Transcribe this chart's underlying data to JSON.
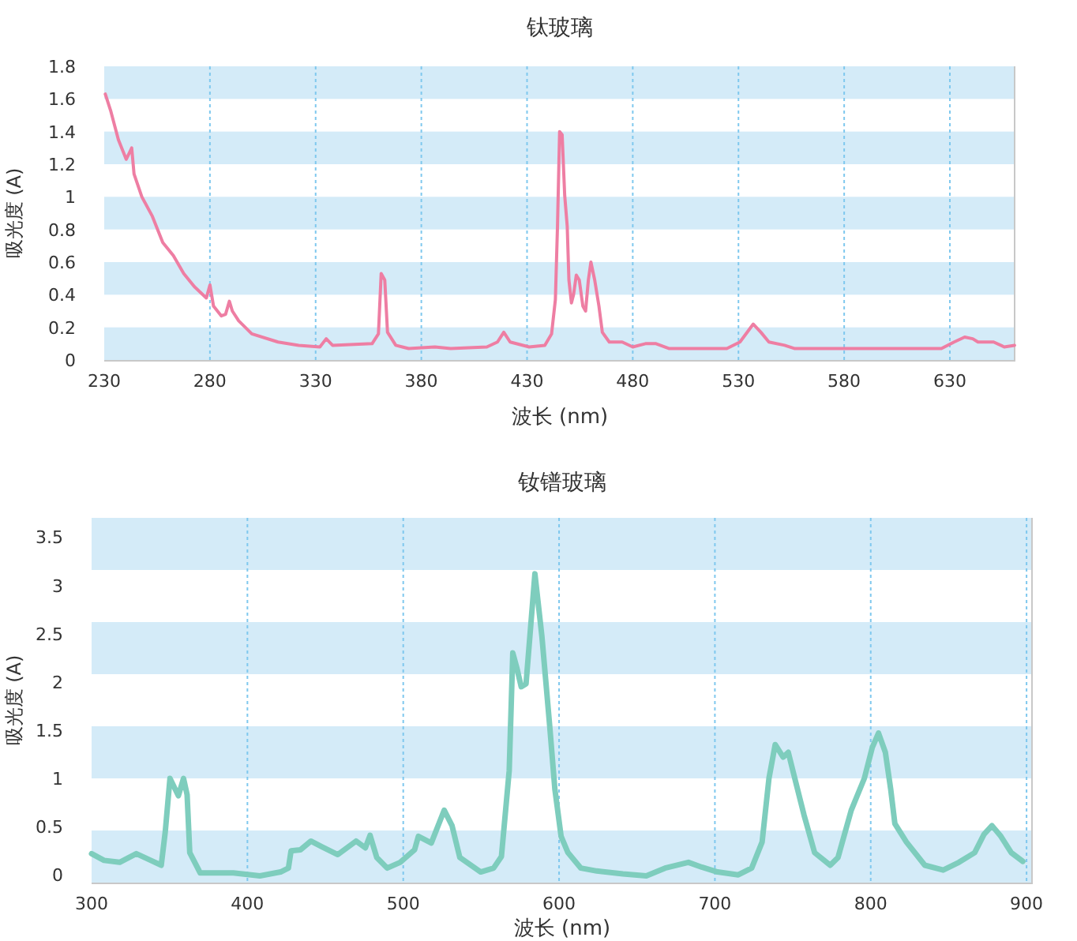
{
  "chart_data": [
    {
      "type": "line",
      "title": "钛玻璃",
      "xlabel": "波长 (nm)",
      "ylabel": "吸光度 (A)",
      "xlim": [
        230,
        661
      ],
      "ylim": [
        0,
        1.8
      ],
      "xticks": [
        230,
        280,
        330,
        380,
        430,
        480,
        530,
        580,
        630
      ],
      "yticks": [
        0,
        0.2,
        0.4,
        0.6,
        0.8,
        1,
        1.2,
        1.4,
        1.6,
        1.8
      ],
      "grid": "x",
      "bands": [
        {
          "axis": "y",
          "from": 0,
          "to": 0.2,
          "color": "#d4ebf8"
        },
        {
          "axis": "y",
          "from": 0.4,
          "to": 0.6,
          "color": "#d4ebf8"
        },
        {
          "axis": "y",
          "from": 0.8,
          "to": 1,
          "color": "#d4ebf8"
        },
        {
          "axis": "y",
          "from": 1.2,
          "to": 1.4,
          "color": "#d4ebf8"
        },
        {
          "axis": "y",
          "from": 1.6,
          "to": 1.8,
          "color": "#d4ebf8"
        }
      ],
      "series": [
        {
          "color": "#ee7ea3",
          "x": [
            230.5,
            233,
            236.7,
            240.4,
            241.9,
            243,
            244.1,
            247.8,
            252.8,
            257.7,
            262.7,
            267.6,
            272.6,
            278.3,
            280,
            281.7,
            285.4,
            287.4,
            289.2,
            290.6,
            293.6,
            299.8,
            312.2,
            322,
            332,
            335,
            338,
            356.7,
            359.7,
            361,
            362.7,
            364,
            367.9,
            374,
            386.4,
            393.9,
            411,
            416,
            419,
            422,
            431,
            438.4,
            441.6,
            443.4,
            444.4,
            445.4,
            446.6,
            447.8,
            449,
            449.8,
            451,
            452,
            453.3,
            454.7,
            456.4,
            457.7,
            459,
            460.2,
            462,
            464,
            465.6,
            468.9,
            475,
            480,
            486,
            491,
            497.3,
            524.5,
            530.7,
            537,
            540.6,
            544.4,
            551.8,
            556.7,
            626,
            632,
            637,
            640.8,
            643.3,
            650.7,
            655.7,
            660.6
          ],
          "values": [
            1.63,
            1.53,
            1.35,
            1.23,
            1.27,
            1.3,
            1.14,
            1,
            0.88,
            0.72,
            0.64,
            0.53,
            0.45,
            0.38,
            0.46,
            0.33,
            0.27,
            0.28,
            0.36,
            0.3,
            0.24,
            0.16,
            0.11,
            0.09,
            0.08,
            0.13,
            0.09,
            0.1,
            0.16,
            0.53,
            0.49,
            0.17,
            0.09,
            0.07,
            0.08,
            0.07,
            0.08,
            0.11,
            0.17,
            0.11,
            0.08,
            0.09,
            0.16,
            0.37,
            0.82,
            1.4,
            1.38,
            1.01,
            0.82,
            0.49,
            0.35,
            0.4,
            0.52,
            0.49,
            0.33,
            0.3,
            0.49,
            0.6,
            0.49,
            0.33,
            0.17,
            0.11,
            0.11,
            0.08,
            0.1,
            0.1,
            0.07,
            0.07,
            0.11,
            0.22,
            0.17,
            0.11,
            0.09,
            0.07,
            0.07,
            0.11,
            0.14,
            0.13,
            0.11,
            0.11,
            0.08,
            0.09
          ]
        }
      ]
    },
    {
      "type": "line",
      "title": "钕镨玻璃",
      "xlabel": "波长 (nm)",
      "ylabel": "吸光度 (A)",
      "xlim": [
        300,
        904
      ],
      "ylim": [
        -0.08,
        3.7
      ],
      "xticks": [
        300,
        400,
        500,
        600,
        700,
        800,
        900
      ],
      "yticks": [
        0,
        0.5,
        1,
        1.5,
        2,
        2.5,
        3,
        3.5
      ],
      "grid": "x",
      "bands": [
        {
          "axis": "y",
          "from": -0.08,
          "to": 0.46,
          "color": "#d4ebf8"
        },
        {
          "axis": "y",
          "from": 1,
          "to": 1.54,
          "color": "#d4ebf8"
        },
        {
          "axis": "y",
          "from": 2.08,
          "to": 2.62,
          "color": "#d4ebf8"
        },
        {
          "axis": "y",
          "from": 3.16,
          "to": 3.7,
          "color": "#d4ebf8"
        }
      ],
      "series": [
        {
          "color": "#7ecdbd",
          "x": [
            300,
            308,
            318,
            328.7,
            338,
            344.7,
            347.3,
            350.3,
            355.7,
            359,
            361.3,
            363,
            369.7,
            381.3,
            391,
            408,
            421.3,
            426.3,
            428,
            434,
            440.7,
            448,
            458,
            469.7,
            475.7,
            478.7,
            483,
            489.7,
            498,
            507.3,
            509.7,
            518,
            526.3,
            531.3,
            536.3,
            549.7,
            558,
            563,
            568,
            570.3,
            573,
            575.7,
            578.8,
            584.5,
            589,
            594,
            597.3,
            601.3,
            605.7,
            614,
            624.2,
            641,
            656,
            668,
            683,
            691.6,
            701.7,
            715,
            723.6,
            730.3,
            734.7,
            738.7,
            743.8,
            747.1,
            750.5,
            757.2,
            764,
            774,
            779,
            787.5,
            795.9,
            801,
            805,
            809.4,
            812.8,
            815.5,
            822.9,
            834.7,
            846.5,
            856.6,
            866.7,
            872.7,
            877.8,
            883.5,
            890.2,
            897.6
          ],
          "values": [
            0.22,
            0.15,
            0.13,
            0.22,
            0.15,
            0.1,
            0.45,
            1,
            0.82,
            1,
            0.83,
            0.23,
            0.02,
            0.02,
            0.02,
            -0.01,
            0.03,
            0.07,
            0.25,
            0.26,
            0.35,
            0.29,
            0.21,
            0.35,
            0.28,
            0.41,
            0.18,
            0.07,
            0.13,
            0.26,
            0.4,
            0.33,
            0.67,
            0.51,
            0.18,
            0.03,
            0.07,
            0.19,
            1.08,
            2.3,
            2.14,
            1.95,
            1.98,
            3.12,
            2.47,
            1.54,
            0.89,
            0.4,
            0.23,
            0.07,
            0.04,
            0.01,
            -0.01,
            0.07,
            0.13,
            0.08,
            0.03,
            0,
            0.07,
            0.34,
            1,
            1.35,
            1.22,
            1.27,
            1.05,
            0.62,
            0.23,
            0.1,
            0.18,
            0.67,
            1,
            1.32,
            1.47,
            1.27,
            0.89,
            0.53,
            0.34,
            0.1,
            0.05,
            0.13,
            0.23,
            0.42,
            0.51,
            0.4,
            0.23,
            0.14
          ]
        }
      ]
    }
  ]
}
